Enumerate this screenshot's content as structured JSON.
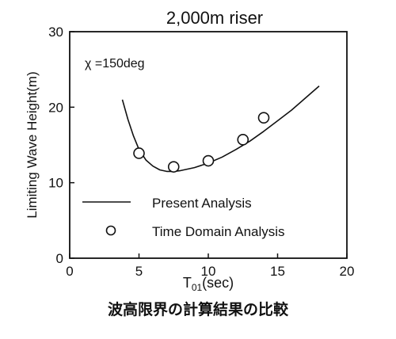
{
  "caption": "波高限界の計算結果の比較",
  "chart_data": {
    "type": "line",
    "title": "2,000m  riser",
    "annotation": "χ =150deg",
    "xlabel_main": "T",
    "xlabel_sub": "01",
    "xlabel_unit": "(sec)",
    "ylabel": "Limiting Wave Height(m)",
    "xlim": [
      0,
      20
    ],
    "ylim": [
      0,
      30
    ],
    "x_ticks": [
      0,
      5,
      10,
      15,
      20
    ],
    "y_ticks": [
      0,
      10,
      20,
      30
    ],
    "grid": false,
    "legend_position": "inside-bottom",
    "series": [
      {
        "name": "Present Analysis",
        "style": "line",
        "x": [
          3.8,
          4.2,
          4.6,
          5.0,
          5.5,
          6.0,
          6.5,
          7.0,
          7.5,
          8.0,
          9.0,
          10.0,
          11.0,
          12.0,
          13.0,
          14.0,
          15.0,
          16.0,
          17.0,
          18.0
        ],
        "y": [
          21.0,
          18.4,
          16.2,
          14.4,
          13.0,
          12.2,
          11.7,
          11.5,
          11.5,
          11.6,
          12.0,
          12.6,
          13.4,
          14.4,
          15.5,
          16.8,
          18.2,
          19.6,
          21.2,
          22.8
        ]
      },
      {
        "name": "Time Domain Analysis",
        "style": "marker",
        "x": [
          5.0,
          7.5,
          10.0,
          12.5,
          14.0
        ],
        "y": [
          13.9,
          12.1,
          12.9,
          15.7,
          18.6
        ]
      }
    ]
  }
}
